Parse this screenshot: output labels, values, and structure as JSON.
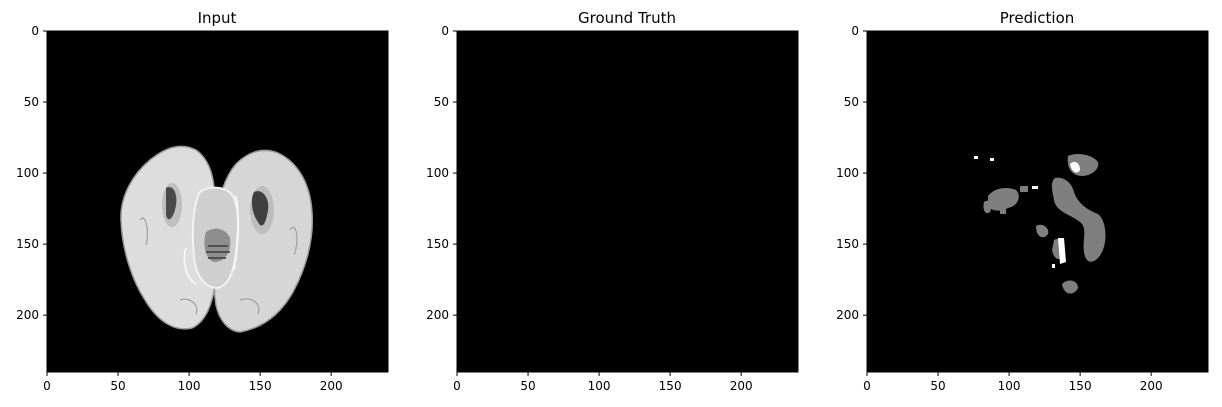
{
  "figure": {
    "panels": [
      {
        "id": "input",
        "title": "Input",
        "content": "brain-slice",
        "x_ticks": [
          "0",
          "50",
          "100",
          "150",
          "200"
        ],
        "y_ticks": [
          "0",
          "50",
          "100",
          "150",
          "200"
        ]
      },
      {
        "id": "ground-truth",
        "title": "Ground Truth",
        "content": "empty",
        "x_ticks": [
          "0",
          "50",
          "100",
          "150",
          "200"
        ],
        "y_ticks": [
          "0",
          "50",
          "100",
          "150",
          "200"
        ]
      },
      {
        "id": "prediction",
        "title": "Prediction",
        "content": "segmentation",
        "x_ticks": [
          "0",
          "50",
          "100",
          "150",
          "200"
        ],
        "y_ticks": [
          "0",
          "50",
          "100",
          "150",
          "200"
        ]
      }
    ],
    "axis_range": [
      0,
      240
    ],
    "colors": {
      "background": "#000000",
      "tissue_light": "#e6e6e6",
      "tissue_mid": "#bdbdbd",
      "tissue_dark": "#4a4a4a",
      "prediction_gray": "#7f7f7f",
      "prediction_white": "#ffffff"
    }
  }
}
